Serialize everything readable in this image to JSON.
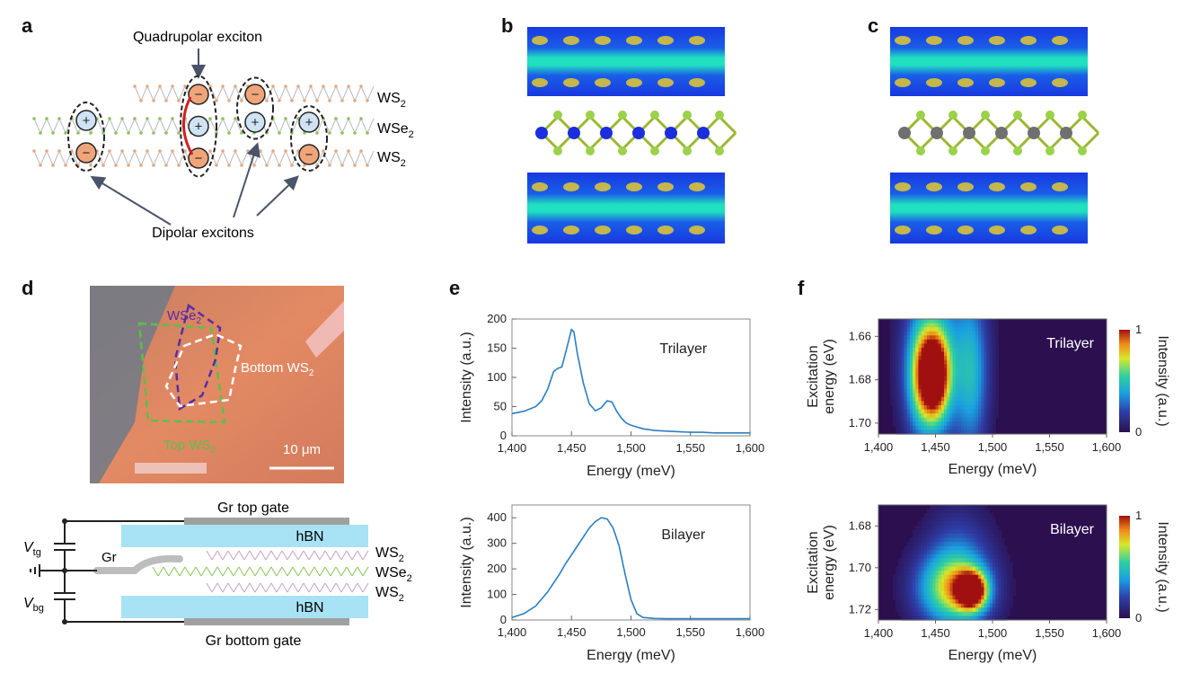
{
  "panels": {
    "a": {
      "label": "a",
      "title": "Quadrupolar exciton",
      "caption": "Dipolar excitons",
      "layers": [
        "WS",
        "WSe",
        "WS"
      ],
      "layer_subscripts": [
        "2",
        "2",
        "2"
      ],
      "plus": "+",
      "minus": "−"
    },
    "b": {
      "label": "b"
    },
    "c": {
      "label": "c"
    },
    "d": {
      "label": "d",
      "photo_labels": {
        "wse2": "WSe",
        "wse2_sub": "2",
        "bottom": "Bottom WS",
        "bottom_sub": "2",
        "top": "Top WS",
        "top_sub": "2",
        "scale": "10 μm"
      },
      "schematic": {
        "top_gate": "Gr top gate",
        "bottom_gate": "Gr bottom gate",
        "hbn_top": "hBN",
        "hbn_bottom": "hBN",
        "gr": "Gr",
        "vtg": "V",
        "vtg_sub": "tg",
        "vbg": "V",
        "vbg_sub": "bg",
        "layers": [
          "WS",
          "WSe",
          "WS"
        ],
        "layer_subscripts": [
          "2",
          "2",
          "2"
        ]
      }
    },
    "e": {
      "label": "e"
    },
    "f": {
      "label": "f"
    }
  },
  "colors": {
    "line": "#2a7fc1",
    "hbn": "#a8e2f5",
    "gate": "#a0a0a0",
    "dash": "#222222",
    "plus_fill": "#cfe3f4",
    "minus_fill": "#f0a47a",
    "heat_bg": "#2b0f4f"
  },
  "chart_data": [
    {
      "id": "e-trilayer",
      "type": "line",
      "annotation": "Trilayer",
      "xlabel": "Energy (meV)",
      "ylabel": "Intensity (a.u.)",
      "xlim": [
        1400,
        1600
      ],
      "ylim": [
        0,
        200
      ],
      "xticks": [
        1400,
        1450,
        1500,
        1550,
        1600
      ],
      "xtick_labels": [
        "1,400",
        "1,450",
        "1,500",
        "1,550",
        "1,600"
      ],
      "yticks": [
        0,
        50,
        100,
        150,
        200
      ],
      "ytick_labels": [
        "0",
        "50",
        "100",
        "150",
        "200"
      ],
      "x": [
        1400,
        1410,
        1420,
        1425,
        1430,
        1435,
        1438,
        1442,
        1446,
        1450,
        1452,
        1455,
        1460,
        1465,
        1470,
        1475,
        1480,
        1484,
        1488,
        1492,
        1496,
        1500,
        1510,
        1520,
        1530,
        1540,
        1550,
        1560,
        1570,
        1580,
        1590,
        1600
      ],
      "y": [
        38,
        42,
        50,
        60,
        80,
        110,
        115,
        118,
        150,
        182,
        178,
        140,
        90,
        55,
        43,
        48,
        60,
        58,
        42,
        30,
        22,
        18,
        12,
        9,
        8,
        7,
        6,
        6,
        5,
        5,
        5,
        5
      ]
    },
    {
      "id": "e-bilayer",
      "type": "line",
      "annotation": "Bilayer",
      "xlabel": "Energy (meV)",
      "ylabel": "Intensity (a.u.)",
      "xlim": [
        1400,
        1600
      ],
      "ylim": [
        0,
        450
      ],
      "xticks": [
        1400,
        1450,
        1500,
        1550,
        1600
      ],
      "xtick_labels": [
        "1,400",
        "1,450",
        "1,500",
        "1,550",
        "1,600"
      ],
      "yticks": [
        0,
        100,
        200,
        300,
        400
      ],
      "ytick_labels": [
        "0",
        "100",
        "200",
        "300",
        "400"
      ],
      "x": [
        1400,
        1410,
        1420,
        1430,
        1440,
        1445,
        1450,
        1455,
        1460,
        1465,
        1470,
        1475,
        1480,
        1485,
        1490,
        1495,
        1500,
        1505,
        1510,
        1520,
        1530,
        1540,
        1550,
        1560,
        1570,
        1580,
        1590,
        1600
      ],
      "y": [
        10,
        25,
        55,
        110,
        180,
        220,
        255,
        290,
        325,
        360,
        385,
        400,
        395,
        360,
        290,
        180,
        80,
        25,
        10,
        6,
        5,
        5,
        5,
        5,
        5,
        5,
        5,
        5
      ]
    },
    {
      "id": "f-trilayer",
      "type": "heatmap",
      "annotation": "Trilayer",
      "xlabel": "Energy (meV)",
      "ylabel": "Excitation energy (eV)",
      "ylabel_lines": [
        "Excitation",
        "energy (eV)"
      ],
      "xlim": [
        1400,
        1600
      ],
      "ylim": [
        1.705,
        1.652
      ],
      "xticks": [
        1400,
        1450,
        1500,
        1550,
        1600
      ],
      "xtick_labels": [
        "1,400",
        "1,450",
        "1,500",
        "1,550",
        "1,600"
      ],
      "yticks": [
        1.66,
        1.68,
        1.7
      ],
      "ytick_labels": [
        "1.66",
        "1.68",
        "1.70"
      ],
      "colorbar_label": "Intensity (a.u.)",
      "colorbar_range": [
        "0",
        "1"
      ],
      "peaks": [
        {
          "x": 1450,
          "y": 1.678,
          "amp": 1.0,
          "sx": 9,
          "sy": 0.014
        },
        {
          "x": 1438,
          "y": 1.678,
          "amp": 0.55,
          "sx": 10,
          "sy": 0.018
        },
        {
          "x": 1482,
          "y": 1.678,
          "amp": 0.35,
          "sx": 10,
          "sy": 0.025
        },
        {
          "x": 1455,
          "y": 1.667,
          "amp": 0.3,
          "sx": 22,
          "sy": 0.03
        }
      ]
    },
    {
      "id": "f-bilayer",
      "type": "heatmap",
      "annotation": "Bilayer",
      "xlabel": "Energy (meV)",
      "ylabel": "Excitation energy (eV)",
      "ylabel_lines": [
        "Excitation",
        "energy (eV)"
      ],
      "xlim": [
        1400,
        1600
      ],
      "ylim": [
        1.725,
        1.67
      ],
      "xticks": [
        1400,
        1450,
        1500,
        1550,
        1600
      ],
      "xtick_labels": [
        "1,400",
        "1,450",
        "1,500",
        "1,550",
        "1,600"
      ],
      "yticks": [
        1.68,
        1.7,
        1.72
      ],
      "ytick_labels": [
        "1.68",
        "1.70",
        "1.72"
      ],
      "colorbar_label": "Intensity (a.u.)",
      "colorbar_range": [
        "0",
        "1"
      ],
      "peaks": [
        {
          "x": 1482,
          "y": 1.711,
          "amp": 1.0,
          "sx": 9,
          "sy": 0.006
        },
        {
          "x": 1465,
          "y": 1.71,
          "amp": 0.6,
          "sx": 22,
          "sy": 0.012
        },
        {
          "x": 1470,
          "y": 1.7,
          "amp": 0.25,
          "sx": 20,
          "sy": 0.02
        }
      ]
    }
  ]
}
